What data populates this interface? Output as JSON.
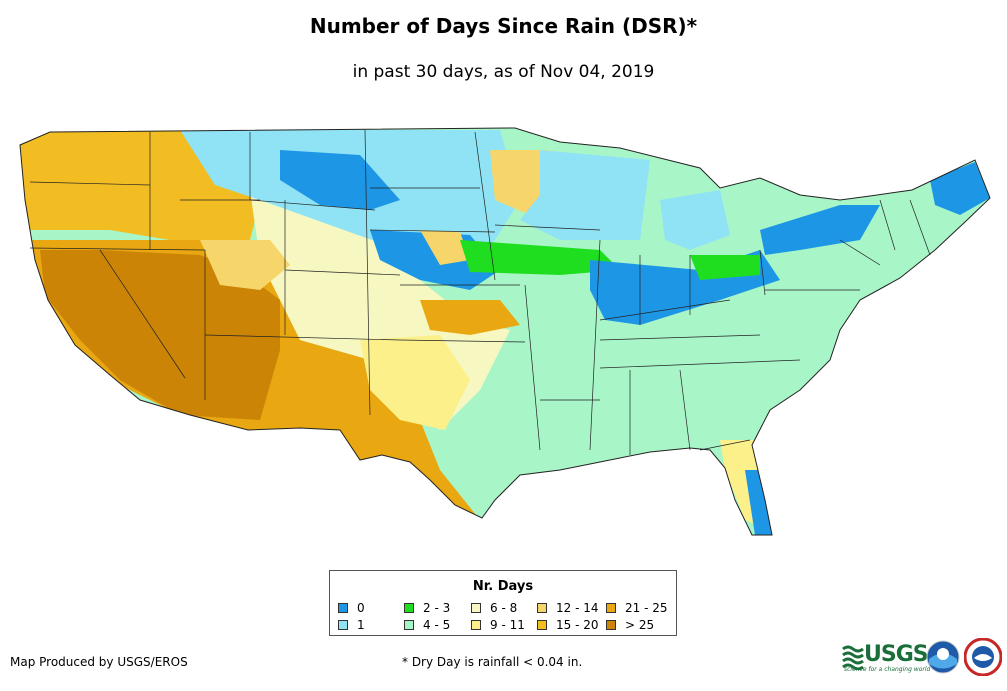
{
  "header": {
    "title": "Number of Days Since Rain (DSR)*",
    "subtitle": "in past 30 days, as of Nov 04, 2019"
  },
  "legend": {
    "title": "Nr. Days",
    "items": [
      {
        "label": "0",
        "color": "#1e96e6"
      },
      {
        "label": "1",
        "color": "#8fe3f5"
      },
      {
        "label": "2 - 3",
        "color": "#1fde1f"
      },
      {
        "label": "4 - 5",
        "color": "#a8f5c8"
      },
      {
        "label": "6 - 8",
        "color": "#f7f7c2"
      },
      {
        "label": "9 - 11",
        "color": "#fbf08a"
      },
      {
        "label": "12 - 14",
        "color": "#f6d56a"
      },
      {
        "label": "15 - 20",
        "color": "#f2bd22"
      },
      {
        "label": "21 - 25",
        "color": "#e9a712"
      },
      {
        "label": "> 25",
        "color": "#cc8406"
      }
    ]
  },
  "footer": {
    "credit": "Map Produced by USGS/EROS",
    "footnote": "* Dry Day is rainfall < 0.04 in.",
    "usgs_logo_text": "USGS",
    "usgs_tagline": "science for a changing world"
  }
}
